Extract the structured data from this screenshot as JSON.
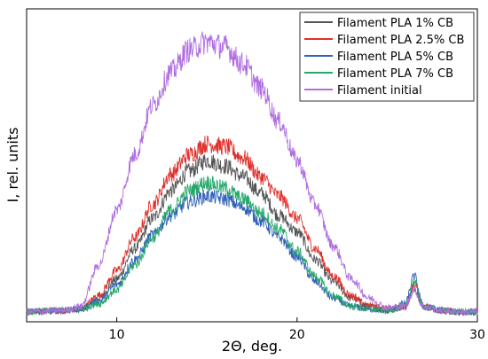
{
  "chart_data": {
    "type": "line",
    "xlabel": "2Θ, deg.",
    "ylabel": "I, rel. units",
    "xlim": [
      5,
      30
    ],
    "ylim": [
      0,
      100
    ],
    "x_ticks": [
      10,
      20,
      30
    ],
    "x_tick_labels": [
      "10",
      "20",
      "30"
    ],
    "y_ticks_shown": false,
    "grid": false,
    "legend_position": "top-right",
    "series": [
      {
        "name": "Filament PLA 1% CB",
        "color": "#555555",
        "x": [
          5,
          7,
          8,
          9,
          10,
          11,
          12,
          13,
          14,
          15,
          16,
          17,
          18,
          19,
          20,
          21,
          22,
          23,
          24,
          25,
          26,
          26.5,
          27,
          28,
          29,
          30
        ],
        "y": [
          1,
          1.5,
          2,
          6,
          13,
          24,
          35,
          45,
          52,
          56,
          54,
          50,
          44,
          36,
          30,
          20,
          12,
          6,
          3,
          1.5,
          3,
          10,
          3,
          1.5,
          1,
          1
        ]
      },
      {
        "name": "Filament PLA 2.5% CB",
        "color": "#e0302c",
        "x": [
          5,
          7,
          8,
          9,
          10,
          11,
          12,
          13,
          14,
          15,
          16,
          17,
          18,
          19,
          20,
          21,
          22,
          23,
          24,
          25,
          26,
          26.5,
          27,
          28,
          29,
          30
        ],
        "y": [
          1,
          1.5,
          2,
          7,
          16,
          28,
          40,
          51,
          58,
          62,
          61,
          57,
          50,
          43,
          35,
          24,
          14,
          7,
          3,
          2,
          3,
          11,
          3,
          1.5,
          1,
          1
        ]
      },
      {
        "name": "Filament PLA 5% CB",
        "color": "#2f62b8",
        "x": [
          5,
          7,
          8,
          9,
          10,
          11,
          12,
          13,
          14,
          15,
          16,
          17,
          18,
          19,
          20,
          21,
          22,
          23,
          24,
          25,
          26,
          26.5,
          27,
          28,
          29,
          30
        ],
        "y": [
          1,
          1.5,
          2,
          5,
          11,
          20,
          29,
          36,
          41,
          43,
          42,
          39,
          34,
          28,
          21,
          12,
          6,
          3,
          2,
          1.5,
          4,
          14,
          3,
          1.5,
          1,
          1
        ]
      },
      {
        "name": "Filament PLA 7% CB",
        "color": "#27a86b",
        "x": [
          5,
          7,
          8,
          9,
          10,
          11,
          12,
          13,
          14,
          15,
          16,
          17,
          18,
          19,
          20,
          21,
          22,
          23,
          24,
          25,
          26,
          26.5,
          27,
          28,
          29,
          30
        ],
        "y": [
          1,
          1.5,
          2,
          4,
          9,
          18,
          28,
          38,
          45,
          48,
          46,
          42,
          37,
          31,
          23,
          14,
          7,
          3,
          2,
          1.5,
          3,
          12,
          3,
          1.5,
          1,
          1
        ]
      },
      {
        "name": "Filament initial",
        "color": "#b06fe0",
        "x": [
          5,
          7,
          8,
          9,
          10,
          11,
          12,
          13,
          14,
          15,
          16,
          17,
          18,
          19,
          20,
          21,
          22,
          23,
          24,
          25,
          26,
          26.5,
          27,
          28,
          29,
          30
        ],
        "y": [
          1,
          1.5,
          3,
          18,
          38,
          58,
          76,
          88,
          96,
          99,
          97,
          91,
          82,
          70,
          56,
          40,
          25,
          13,
          6,
          2.5,
          3,
          9,
          3,
          1.5,
          1,
          1
        ]
      }
    ]
  }
}
